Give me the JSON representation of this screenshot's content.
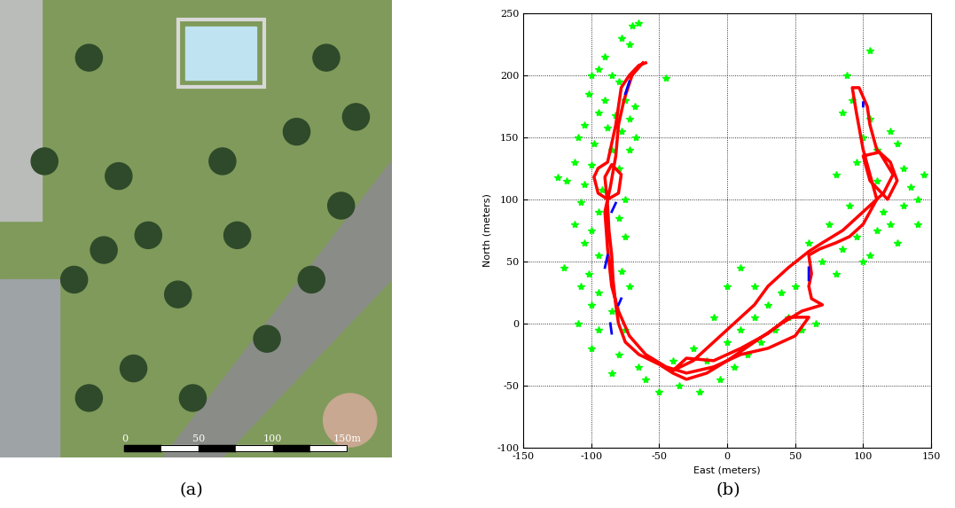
{
  "chart_data": [
    {
      "type": "image",
      "caption": "(a)",
      "scale_bar": {
        "ticks": [
          0,
          50,
          100,
          {
            "value": 150,
            "label": "150m"
          }
        ]
      }
    },
    {
      "type": "line",
      "caption": "(b)",
      "x_label": "East (meters)",
      "y_label": "North (meters)",
      "xlim": [
        -150,
        150
      ],
      "ylim": [
        -100,
        250
      ],
      "xticks": [
        -150,
        -100,
        -50,
        0,
        50,
        100,
        150
      ],
      "yticks": [
        -100,
        -50,
        0,
        50,
        100,
        150,
        200,
        250
      ],
      "grid": true,
      "series": [
        {
          "type": "scatter",
          "color": "#00ff00",
          "marker": "star",
          "points": [
            [
              -70,
              240
            ],
            [
              -65,
              242
            ],
            [
              -78,
              230
            ],
            [
              -72,
              225
            ],
            [
              -90,
              215
            ],
            [
              -95,
              205
            ],
            [
              -100,
              200
            ],
            [
              -85,
              200
            ],
            [
              -80,
              195
            ],
            [
              -102,
              185
            ],
            [
              -90,
              180
            ],
            [
              -75,
              180
            ],
            [
              -68,
              175
            ],
            [
              -95,
              170
            ],
            [
              -82,
              168
            ],
            [
              -72,
              165
            ],
            [
              -105,
              160
            ],
            [
              -88,
              158
            ],
            [
              -78,
              155
            ],
            [
              -67,
              150
            ],
            [
              -110,
              150
            ],
            [
              -98,
              145
            ],
            [
              -85,
              140
            ],
            [
              -72,
              140
            ],
            [
              -112,
              130
            ],
            [
              -100,
              128
            ],
            [
              -80,
              125
            ],
            [
              -118,
              115
            ],
            [
              -105,
              112
            ],
            [
              -92,
              108
            ],
            [
              -75,
              100
            ],
            [
              -108,
              98
            ],
            [
              -95,
              90
            ],
            [
              -80,
              85
            ],
            [
              -112,
              80
            ],
            [
              -100,
              75
            ],
            [
              -75,
              70
            ],
            [
              -105,
              65
            ],
            [
              -95,
              55
            ],
            [
              -120,
              45
            ],
            [
              -102,
              40
            ],
            [
              -78,
              42
            ],
            [
              -108,
              30
            ],
            [
              -95,
              25
            ],
            [
              -72,
              30
            ],
            [
              -100,
              15
            ],
            [
              -85,
              10
            ],
            [
              -110,
              0
            ],
            [
              -95,
              -5
            ],
            [
              -75,
              -5
            ],
            [
              -100,
              -20
            ],
            [
              -80,
              -25
            ],
            [
              -65,
              -35
            ],
            [
              -85,
              -40
            ],
            [
              -60,
              -45
            ],
            [
              -45,
              198
            ],
            [
              -125,
              118
            ],
            [
              -50,
              -55
            ],
            [
              -40,
              -30
            ],
            [
              -35,
              -50
            ],
            [
              -25,
              -20
            ],
            [
              -20,
              -55
            ],
            [
              -15,
              -30
            ],
            [
              -5,
              -45
            ],
            [
              0,
              -15
            ],
            [
              5,
              -35
            ],
            [
              10,
              -5
            ],
            [
              15,
              -25
            ],
            [
              20,
              5
            ],
            [
              25,
              -15
            ],
            [
              30,
              15
            ],
            [
              35,
              -5
            ],
            [
              40,
              25
            ],
            [
              45,
              5
            ],
            [
              50,
              30
            ],
            [
              55,
              -5
            ],
            [
              65,
              0
            ],
            [
              -10,
              5
            ],
            [
              10,
              45
            ],
            [
              0,
              30
            ],
            [
              20,
              30
            ],
            [
              60,
              65
            ],
            [
              70,
              50
            ],
            [
              75,
              80
            ],
            [
              80,
              40
            ],
            [
              85,
              60
            ],
            [
              90,
              95
            ],
            [
              95,
              70
            ],
            [
              100,
              50
            ],
            [
              105,
              55
            ],
            [
              110,
              75
            ],
            [
              115,
              90
            ],
            [
              88,
              200
            ],
            [
              92,
              180
            ],
            [
              85,
              170
            ],
            [
              100,
              150
            ],
            [
              105,
              165
            ],
            [
              110,
              140
            ],
            [
              120,
              155
            ],
            [
              125,
              145
            ],
            [
              130,
              125
            ],
            [
              135,
              110
            ],
            [
              140,
              100
            ],
            [
              145,
              120
            ],
            [
              130,
              95
            ],
            [
              120,
              80
            ],
            [
              110,
              115
            ],
            [
              105,
              220
            ],
            [
              95,
              130
            ],
            [
              80,
              120
            ],
            [
              125,
              65
            ],
            [
              140,
              80
            ]
          ]
        },
        {
          "type": "line",
          "color": "#ff0000",
          "line_style": "solid",
          "points": [
            [
              -60,
              210
            ],
            [
              -65,
              208
            ],
            [
              -72,
              200
            ],
            [
              -78,
              190
            ],
            [
              -80,
              175
            ],
            [
              -82,
              160
            ],
            [
              -85,
              145
            ],
            [
              -88,
              130
            ],
            [
              -95,
              125
            ],
            [
              -98,
              118
            ],
            [
              -95,
              105
            ],
            [
              -88,
              100
            ],
            [
              -80,
              105
            ],
            [
              -78,
              120
            ],
            [
              -85,
              128
            ],
            [
              -90,
              118
            ],
            [
              -88,
              95
            ],
            [
              -87,
              75
            ],
            [
              -85,
              55
            ],
            [
              -84,
              35
            ],
            [
              -82,
              15
            ],
            [
              -80,
              0
            ],
            [
              -75,
              -15
            ],
            [
              -65,
              -25
            ],
            [
              -50,
              -33
            ],
            [
              -40,
              -40
            ],
            [
              -30,
              -45
            ],
            [
              -15,
              -40
            ],
            [
              0,
              -30
            ],
            [
              20,
              -15
            ],
            [
              40,
              0
            ],
            [
              55,
              10
            ],
            [
              70,
              15
            ],
            [
              62,
              20
            ],
            [
              60,
              30
            ],
            [
              62,
              40
            ],
            [
              60,
              55
            ],
            [
              68,
              60
            ],
            [
              80,
              65
            ],
            [
              90,
              70
            ],
            [
              100,
              80
            ],
            [
              110,
              100
            ],
            [
              105,
              120
            ],
            [
              100,
              140
            ],
            [
              95,
              170
            ],
            [
              92,
              190
            ],
            [
              97,
              190
            ],
            [
              103,
              175
            ],
            [
              105,
              160
            ],
            [
              110,
              140
            ],
            [
              120,
              130
            ],
            [
              125,
              115
            ],
            [
              118,
              100
            ],
            [
              105,
              115
            ],
            [
              100,
              135
            ],
            [
              112,
              138
            ],
            [
              122,
              120
            ],
            [
              115,
              105
            ],
            [
              100,
              90
            ],
            [
              85,
              75
            ],
            [
              70,
              65
            ],
            [
              60,
              58
            ],
            [
              45,
              45
            ],
            [
              30,
              30
            ],
            [
              20,
              15
            ],
            [
              5,
              0
            ],
            [
              -10,
              -15
            ],
            [
              -25,
              -30
            ],
            [
              -40,
              -38
            ],
            [
              -30,
              -28
            ],
            [
              -10,
              -30
            ],
            [
              10,
              -20
            ],
            [
              30,
              -8
            ],
            [
              45,
              5
            ],
            [
              60,
              5
            ],
            [
              50,
              -10
            ],
            [
              30,
              -20
            ],
            [
              10,
              -25
            ],
            [
              -10,
              -35
            ],
            [
              -30,
              -40
            ],
            [
              -45,
              -35
            ],
            [
              -60,
              -25
            ],
            [
              -72,
              -10
            ],
            [
              -80,
              10
            ],
            [
              -85,
              30
            ],
            [
              -88,
              60
            ],
            [
              -90,
              90
            ],
            [
              -86,
              110
            ],
            [
              -82,
              135
            ],
            [
              -80,
              160
            ],
            [
              -76,
              180
            ],
            [
              -70,
              200
            ],
            [
              -62,
              210
            ]
          ]
        },
        {
          "type": "line",
          "color": "#0000ff",
          "line_style": "solid",
          "points": [
            [
              -75,
              185
            ],
            [
              -72,
              195
            ],
            null,
            [
              -85,
              90
            ],
            [
              -82,
              97
            ],
            null,
            [
              -90,
              45
            ],
            [
              -88,
              55
            ],
            null,
            [
              -85,
              -8
            ],
            [
              -86,
              0
            ],
            null,
            [
              -80,
              15
            ],
            [
              -78,
              20
            ],
            null,
            [
              60,
              35
            ],
            [
              60,
              45
            ],
            null,
            [
              100,
              175
            ],
            [
              100,
              178
            ]
          ]
        }
      ]
    }
  ]
}
